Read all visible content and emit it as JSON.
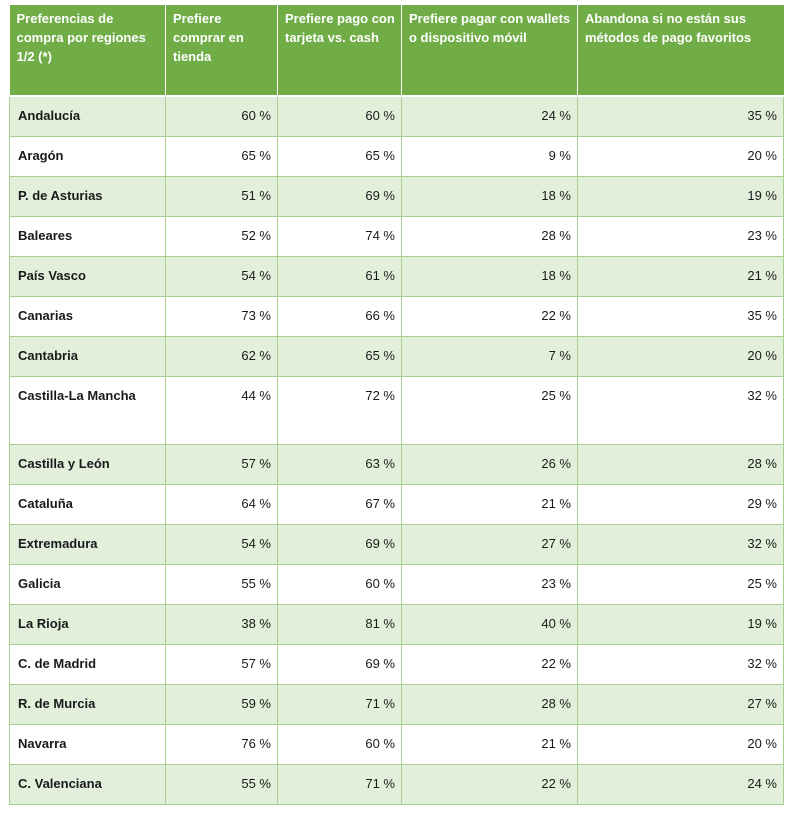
{
  "table": {
    "headers": [
      "Preferencias de compra por regiones 1/2 (*)",
      "Prefiere comprar en tienda",
      "Prefiere pago con tarjeta vs. cash",
      "Prefiere pagar con wallets o dispositivo móvil",
      "Abandona si no están sus métodos de pago favoritos"
    ],
    "rows": [
      [
        "Andalucía",
        "60 %",
        "60 %",
        "24 %",
        "35 %"
      ],
      [
        "Aragón",
        "65 %",
        "65 %",
        "9 %",
        "20 %"
      ],
      [
        "P. de Asturias",
        "51 %",
        "69 %",
        "18 %",
        "19 %"
      ],
      [
        "Baleares",
        "52 %",
        "74 %",
        "28 %",
        "23 %"
      ],
      [
        "País Vasco",
        "54 %",
        "61 %",
        "18 %",
        "21 %"
      ],
      [
        "Canarias",
        "73 %",
        "66 %",
        "22 %",
        "35 %"
      ],
      [
        "Cantabria",
        "62 %",
        "65 %",
        "7 %",
        "20 %"
      ],
      [
        "Castilla-La Mancha",
        "44 %",
        "72 %",
        "25 %",
        "32 %"
      ],
      [
        "Castilla y León",
        "57 %",
        "63 %",
        "26 %",
        "28 %"
      ],
      [
        "Cataluña",
        "64 %",
        "67 %",
        "21 %",
        "29 %"
      ],
      [
        "Extremadura",
        "54 %",
        "69 %",
        "27 %",
        "32 %"
      ],
      [
        "Galicia",
        "55 %",
        "60 %",
        "23 %",
        "25 %"
      ],
      [
        "La Rioja",
        "38 %",
        "81 %",
        "40 %",
        "19 %"
      ],
      [
        "C. de Madrid",
        "57 %",
        "69 %",
        "22 %",
        "32 %"
      ],
      [
        "R. de Murcia",
        "59 %",
        "71 %",
        "28 %",
        "27 %"
      ],
      [
        "Navarra",
        "76 %",
        "60 %",
        "21 %",
        "20 %"
      ],
      [
        "C. Valenciana",
        "55 %",
        "71 %",
        "22 %",
        "24 %"
      ]
    ]
  },
  "colors": {
    "header_bg": "#70ad47",
    "header_text": "#ffffff",
    "band_bg": "#e2efda",
    "border": "#a9d08e"
  }
}
